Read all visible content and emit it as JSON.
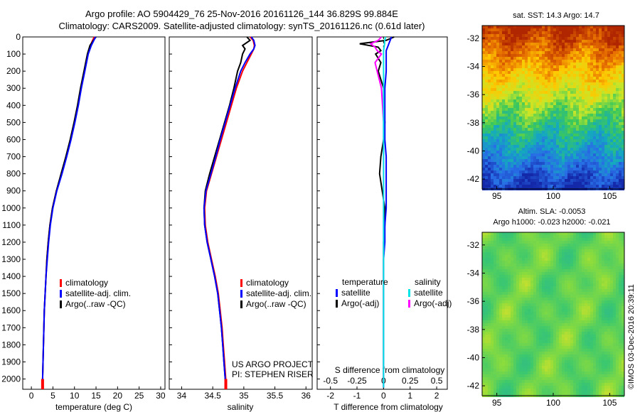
{
  "header": {
    "title_line1": "Argo profile: AO 5904429_76 25-Nov-2016 20161126_144 36.829S 99.884E",
    "title_line2": "Climatology: CARS2009. Satellite-adjusted climatology: synTS_20161126.nc (0.61d later)"
  },
  "colors": {
    "climatology": "#ff0000",
    "satellite": "#0000ff",
    "argo": "#000000",
    "satellite_s": "#00e5e5",
    "argo_s_adj": "#ff00ff"
  },
  "chart_data": [
    {
      "type": "line",
      "name": "temperature-profile",
      "xlabel": "temperature (deg C)",
      "ylabel": "",
      "xlim": [
        -2,
        31
      ],
      "ylim": [
        2060,
        0
      ],
      "xticks": [
        0,
        5,
        10,
        15,
        20,
        25,
        30
      ],
      "yticks": [
        0,
        100,
        200,
        300,
        400,
        500,
        600,
        700,
        800,
        900,
        1000,
        1100,
        1200,
        1300,
        1400,
        1500,
        1600,
        1700,
        1800,
        1900,
        2000
      ],
      "legend": [
        "climatology",
        "satellite-adj. clim.",
        "Argo(..raw -QC)"
      ],
      "depth": [
        0,
        20,
        50,
        100,
        150,
        200,
        300,
        400,
        500,
        600,
        700,
        800,
        900,
        1000,
        1100,
        1200,
        1300,
        1400,
        1500,
        1600,
        1700,
        1800,
        1900,
        2000,
        2050
      ],
      "series": [
        {
          "name": "climatology",
          "values": [
            14.6,
            14.2,
            13.7,
            13.1,
            12.7,
            12.3,
            11.5,
            10.8,
            10.0,
            9.1,
            8.1,
            7.0,
            5.8,
            4.9,
            4.3,
            3.9,
            3.6,
            3.4,
            3.2,
            3.0,
            2.9,
            2.8,
            2.7,
            2.6,
            2.6
          ]
        },
        {
          "name": "satellite-adj. clim.",
          "values": [
            14.9,
            14.5,
            13.9,
            13.2,
            12.8,
            12.4,
            11.6,
            10.9,
            10.1,
            9.2,
            8.2,
            7.1,
            5.9,
            5.0,
            4.4,
            4.0,
            3.7,
            3.4,
            3.2,
            3.0,
            2.9,
            2.8,
            2.7,
            2.6,
            2.6
          ]
        },
        {
          "name": "Argo(..raw -QC)",
          "values": [
            15.0,
            14.4,
            13.6,
            13.0,
            12.6,
            12.2,
            11.4,
            10.7,
            9.9,
            9.0,
            8.0,
            6.9,
            5.8,
            4.9,
            4.3,
            3.9,
            3.6,
            3.4,
            3.2,
            3.0,
            2.9,
            2.8,
            2.7,
            2.6,
            2.6
          ]
        }
      ]
    },
    {
      "type": "line",
      "name": "salinity-profile",
      "xlabel": "salinity",
      "xlim": [
        33.8,
        36.1
      ],
      "xticks": [
        34,
        34.5,
        35,
        35.5,
        36
      ],
      "legend": [
        "climatology",
        "satellite-adj. clim.",
        "Argo(..raw -QC)"
      ],
      "annotation_line1": "US ARGO PROJECT",
      "annotation_line2": "PI: STEPHEN RISER",
      "depth": [
        0,
        20,
        50,
        70,
        100,
        150,
        200,
        300,
        400,
        500,
        600,
        700,
        800,
        900,
        1000,
        1100,
        1200,
        1300,
        1400,
        1500,
        1600,
        1700,
        1800,
        1900,
        2000,
        2050
      ],
      "series": [
        {
          "name": "climatology",
          "values": [
            35.1,
            35.15,
            35.17,
            35.16,
            35.12,
            35.05,
            34.98,
            34.88,
            34.8,
            34.72,
            34.64,
            34.56,
            34.48,
            34.4,
            34.37,
            34.38,
            34.42,
            34.48,
            34.54,
            34.59,
            34.62,
            34.65,
            34.67,
            34.69,
            34.71,
            34.72
          ]
        },
        {
          "name": "satellite-adj. clim.",
          "values": [
            35.12,
            35.16,
            35.18,
            35.16,
            35.1,
            35.02,
            34.95,
            34.86,
            34.78,
            34.7,
            34.62,
            34.55,
            34.47,
            34.39,
            34.36,
            34.37,
            34.41,
            34.47,
            34.53,
            34.58,
            34.61,
            34.64,
            34.66,
            34.68,
            34.7,
            34.71
          ]
        },
        {
          "name": "Argo(..raw -QC)",
          "values": [
            35.05,
            35.1,
            34.98,
            35.02,
            34.98,
            34.95,
            34.9,
            34.84,
            34.77,
            34.69,
            34.61,
            34.53,
            34.45,
            34.38,
            34.36,
            34.37,
            34.41,
            34.47,
            34.53,
            34.58,
            34.61,
            34.64,
            34.66,
            34.68,
            34.7,
            34.71
          ]
        }
      ]
    },
    {
      "type": "line",
      "name": "difference-profile",
      "xlabel_bottom": "T difference from climatology",
      "xlabel_top": "S difference from climatology",
      "xlim": [
        -2.5,
        2.4
      ],
      "xticks_bottom": [
        -2,
        -1,
        0,
        1,
        2
      ],
      "xticks_top": [
        -0.5,
        -0.25,
        0,
        0.25,
        0.5
      ],
      "legend_groups": [
        "temperature",
        "salinity"
      ],
      "legend_t": [
        "satellite",
        "Argo(-adj)"
      ],
      "legend_s": [
        "satellite",
        "Argo(-adj)"
      ],
      "depth": [
        0,
        20,
        40,
        60,
        80,
        100,
        150,
        200,
        300,
        400,
        500,
        600,
        700,
        800,
        900,
        1000,
        1100,
        1200,
        1300,
        1400,
        1500,
        1600,
        1700,
        1800,
        1900,
        2000,
        2050
      ],
      "series": [
        {
          "name": "T satellite",
          "values": [
            0.3,
            0.25,
            0.2,
            0.15,
            0.1,
            0.1,
            0.1,
            0.1,
            0.05,
            0.05,
            0.05,
            0.05,
            0.1,
            0.1,
            0.1,
            0.1,
            0.05,
            0.05,
            0.0,
            0.0,
            0.0,
            0.0,
            0.0,
            0.0,
            0.0,
            0.0,
            0.0
          ]
        },
        {
          "name": "T Argo(-adj)",
          "values": [
            0.4,
            0.1,
            -0.9,
            -0.2,
            -0.1,
            -0.3,
            -0.1,
            -0.2,
            0.0,
            0.0,
            0.05,
            0.0,
            -0.1,
            -0.15,
            -0.05,
            0.05,
            0.05,
            0.0,
            0.0,
            0.0,
            0.0,
            0.0,
            0.0,
            0.0,
            0.0,
            0.0,
            0.0
          ]
        },
        {
          "name": "S satellite",
          "values": [
            0.02,
            0.01,
            0.01,
            0.005,
            0.0,
            0.0,
            0.0,
            0.0,
            0.0,
            0.0,
            0.0,
            0.0,
            0.0,
            0.0,
            0.0,
            0.0,
            0.0,
            0.0,
            0.0,
            0.0,
            0.0,
            0.0,
            0.0,
            0.0,
            0.0,
            0.0,
            0.0
          ]
        },
        {
          "name": "S Argo(-adj)",
          "values": [
            -0.02,
            -0.05,
            -0.12,
            -0.08,
            -0.06,
            -0.02,
            -0.08,
            -0.06,
            -0.02,
            -0.01,
            0.0,
            0.0,
            0.0,
            0.0,
            0.0,
            0.0,
            0.0,
            0.0,
            0.0,
            0.0,
            0.0,
            0.0,
            0.0,
            0.0,
            0.0,
            0.0,
            0.0
          ]
        }
      ]
    },
    {
      "type": "heatmap",
      "name": "sst-map",
      "title": "sat. SST: 14.3 Argo: 14.7",
      "xticks": [
        95,
        100,
        105
      ],
      "xlim": [
        93.7,
        106.3
      ],
      "yticks": [
        -32,
        -34,
        -36,
        -38,
        -40,
        -42
      ],
      "ylim": [
        -42.7,
        -31.1
      ]
    },
    {
      "type": "heatmap",
      "name": "sla-map",
      "title_line1": "Altim. SLA: -0.0053",
      "title_line2": "Argo h1000: -0.023 h2000: -0.021",
      "xticks": [
        95,
        100,
        105
      ],
      "xlim": [
        93.7,
        106.3
      ],
      "yticks": [
        -32,
        -34,
        -36,
        -38,
        -40,
        -42
      ],
      "ylim": [
        -42.7,
        -31.1
      ]
    }
  ],
  "watermark": "©IMOS 03-Dec-2016 20:39:11"
}
